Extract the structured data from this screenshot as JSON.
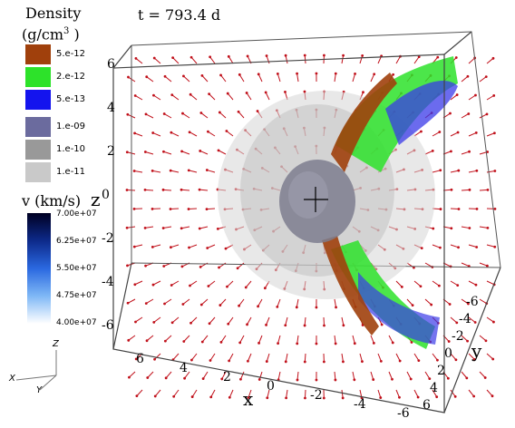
{
  "time_label": "t = 793.4 d",
  "legend": {
    "density_title": "Density",
    "density_unit_base": "(g/cm",
    "density_unit_exp": "3",
    "density_unit_close": " )",
    "surface_entries": [
      {
        "label": "5.e-12",
        "color": "#a0400c"
      },
      {
        "label": "2.e-12",
        "color": "#2de22a"
      },
      {
        "label": "5.e-13",
        "color": "#1414ee"
      }
    ],
    "volume_entries": [
      {
        "label": "1.e-09",
        "color": "#6b6b9e"
      },
      {
        "label": "1.e-10",
        "color": "#999999"
      },
      {
        "label": "1.e-11",
        "color": "#c9c9c9"
      }
    ],
    "velocity_title": "v (km/s)",
    "velocity_ticks": [
      "7.00e+07",
      "6.25e+07",
      "5.50e+07",
      "4.75e+07",
      "4.00e+07"
    ],
    "velocity_colors": [
      "#000022",
      "#0d2a8a",
      "#2a68e0",
      "#7fb8f6",
      "#ffffff"
    ]
  },
  "axes": {
    "z_name": "z",
    "x_name": "x",
    "y_name": "y",
    "z_ticks": [
      "6",
      "4",
      "2",
      "0",
      "-2",
      "-4",
      "-6"
    ],
    "x_ticks": [
      "6",
      "4",
      "2",
      "0",
      "-2",
      "-4",
      "-6"
    ],
    "y_ticks": [
      "-6",
      "-4",
      "-2",
      "0",
      "2",
      "4",
      "6"
    ]
  },
  "orientation": {
    "x": "X",
    "y": "Y",
    "z": "Z"
  },
  "colors": {
    "arrow": "#c0101a",
    "box": "#444444",
    "core": "#7d7d8e"
  }
}
